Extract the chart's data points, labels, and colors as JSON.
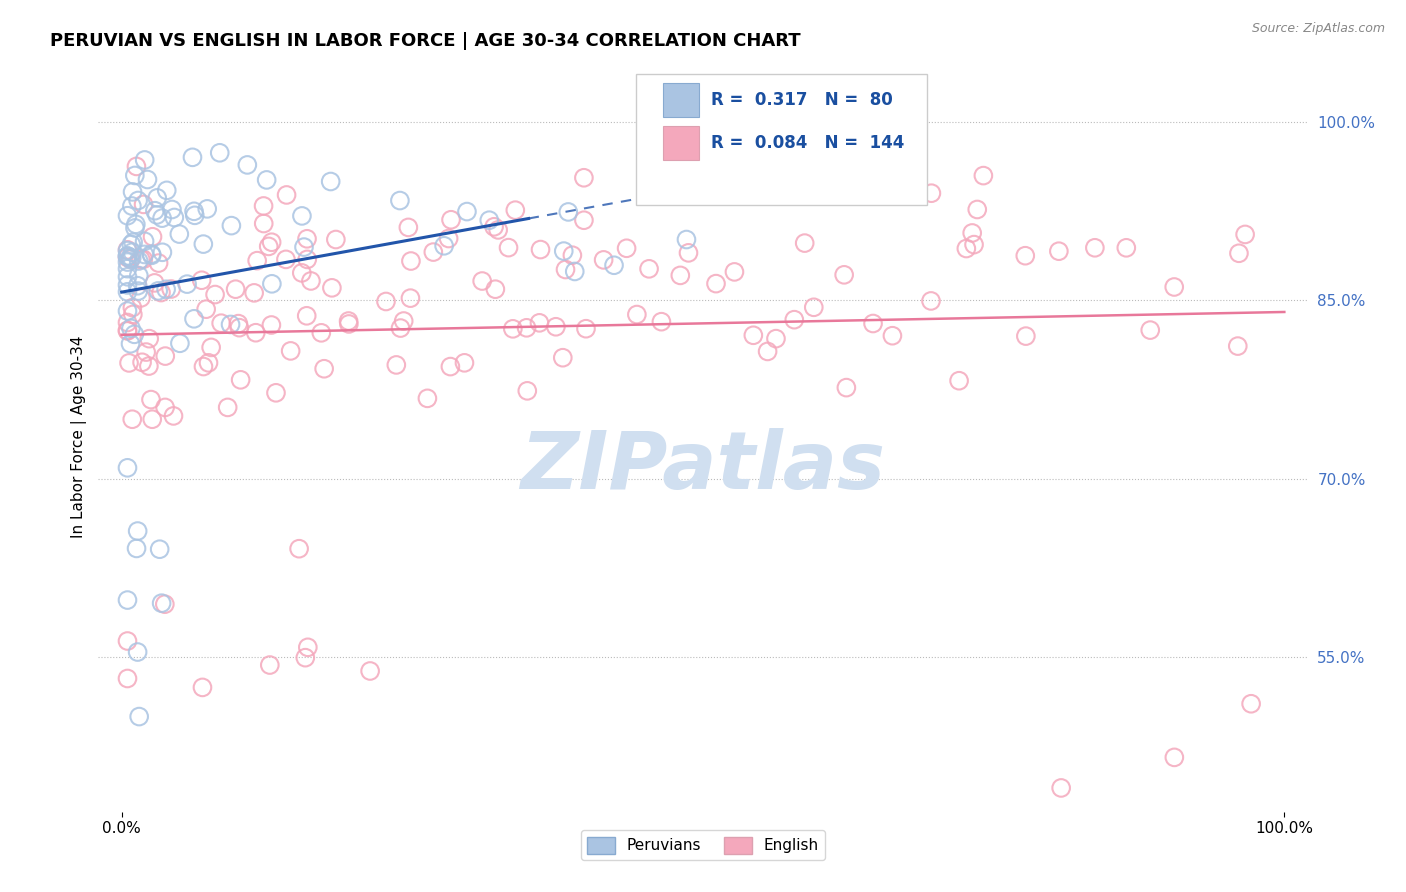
{
  "title": "PERUVIAN VS ENGLISH IN LABOR FORCE | AGE 30-34 CORRELATION CHART",
  "source": "Source: ZipAtlas.com",
  "ylabel": "In Labor Force | Age 30-34",
  "xlim": [
    -0.02,
    1.02
  ],
  "ylim": [
    0.42,
    1.05
  ],
  "yticks": [
    0.55,
    0.7,
    0.85,
    1.0
  ],
  "ytick_labels": [
    "55.0%",
    "70.0%",
    "85.0%",
    "100.0%"
  ],
  "xtick_labels": [
    "0.0%",
    "100.0%"
  ],
  "legend_r_peru": "0.317",
  "legend_n_peru": "80",
  "legend_r_eng": "0.084",
  "legend_n_eng": "144",
  "peru_color": "#aac4e2",
  "eng_color": "#f4a8bc",
  "trend_peru_color": "#2255aa",
  "trend_eng_color": "#e8789a",
  "watermark_text": "ZIPatlas",
  "watermark_color": "#d0dff0"
}
